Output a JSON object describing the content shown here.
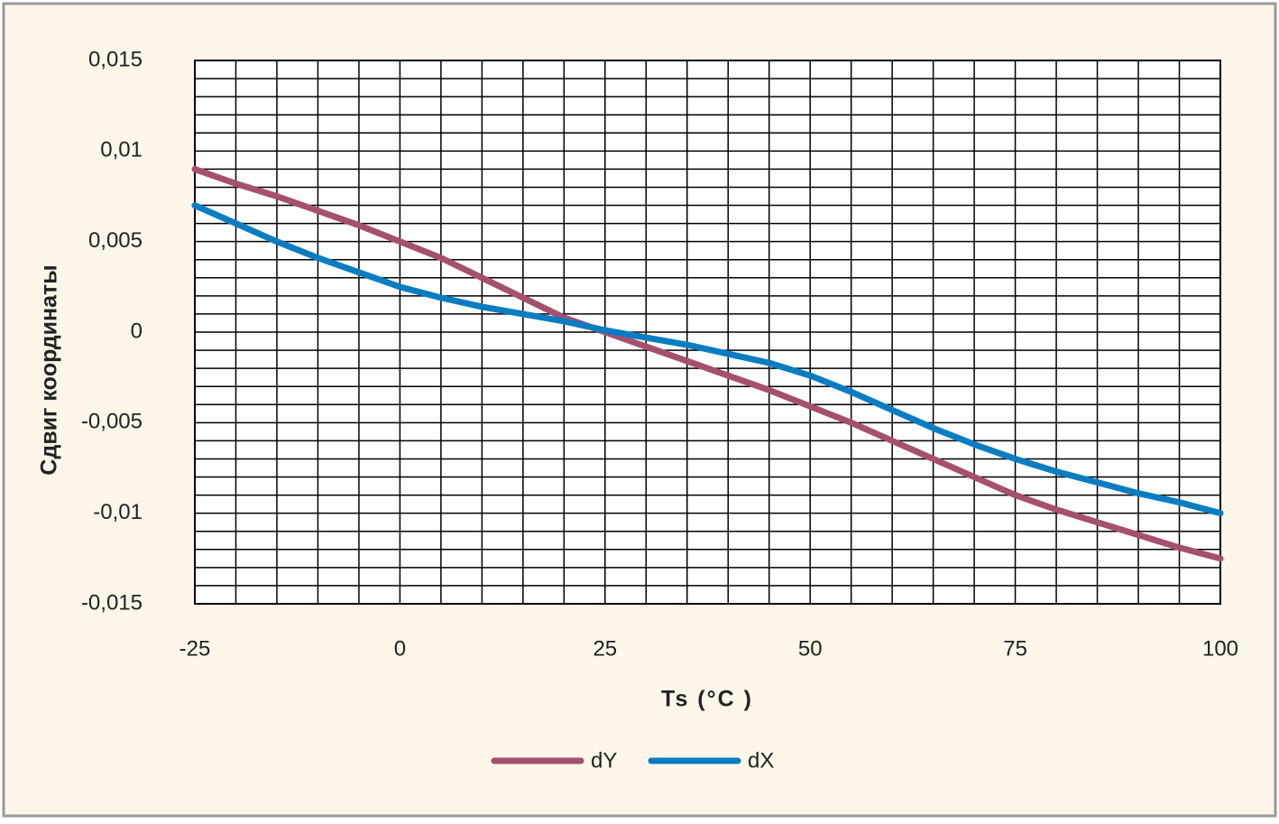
{
  "chart_data": {
    "type": "line",
    "y_label": "Сдвиг координаты",
    "x_label": "Ts (°C )",
    "x": [
      -25,
      -20,
      -15,
      -10,
      -5,
      0,
      5,
      10,
      15,
      20,
      25,
      30,
      35,
      40,
      45,
      50,
      55,
      60,
      65,
      70,
      75,
      80,
      85,
      90,
      95,
      100
    ],
    "series": [
      {
        "name": "dY",
        "color": "#a5506e",
        "values": [
          0.009,
          0.0082,
          0.0075,
          0.0067,
          0.0059,
          0.005,
          0.0041,
          0.003,
          0.0019,
          0.0008,
          0,
          -0.0008,
          -0.0016,
          -0.0024,
          -0.0032,
          -0.0041,
          -0.005,
          -0.006,
          -0.007,
          -0.008,
          -0.009,
          -0.0098,
          -0.0105,
          -0.0112,
          -0.0119,
          -0.0125
        ]
      },
      {
        "name": "dX",
        "color": "#0a7dc2",
        "values": [
          0.007,
          0.006,
          0.005,
          0.0041,
          0.0033,
          0.0025,
          0.0019,
          0.0014,
          0.001,
          0.0006,
          0.0001,
          -0.0003,
          -0.0007,
          -0.0012,
          -0.0017,
          -0.0024,
          -0.0033,
          -0.0043,
          -0.0053,
          -0.0062,
          -0.007,
          -0.0077,
          -0.0083,
          -0.0089,
          -0.0094,
          -0.01
        ]
      }
    ],
    "xlim": [
      -25,
      100
    ],
    "xticks": [
      -25,
      0,
      25,
      50,
      75,
      100
    ],
    "ylim": [
      -0.015,
      0.015
    ],
    "yticks": [
      {
        "value": 0.015,
        "label": "0,015"
      },
      {
        "value": 0.01,
        "label": "0,01"
      },
      {
        "value": 0.005,
        "label": "0,005"
      },
      0,
      {
        "value": -0.005,
        "label": "-0,005"
      },
      {
        "value": -0.01,
        "label": "-0,01"
      },
      {
        "value": -0.015,
        "label": "-0,015"
      }
    ],
    "grid": true,
    "legend": "bottom"
  }
}
